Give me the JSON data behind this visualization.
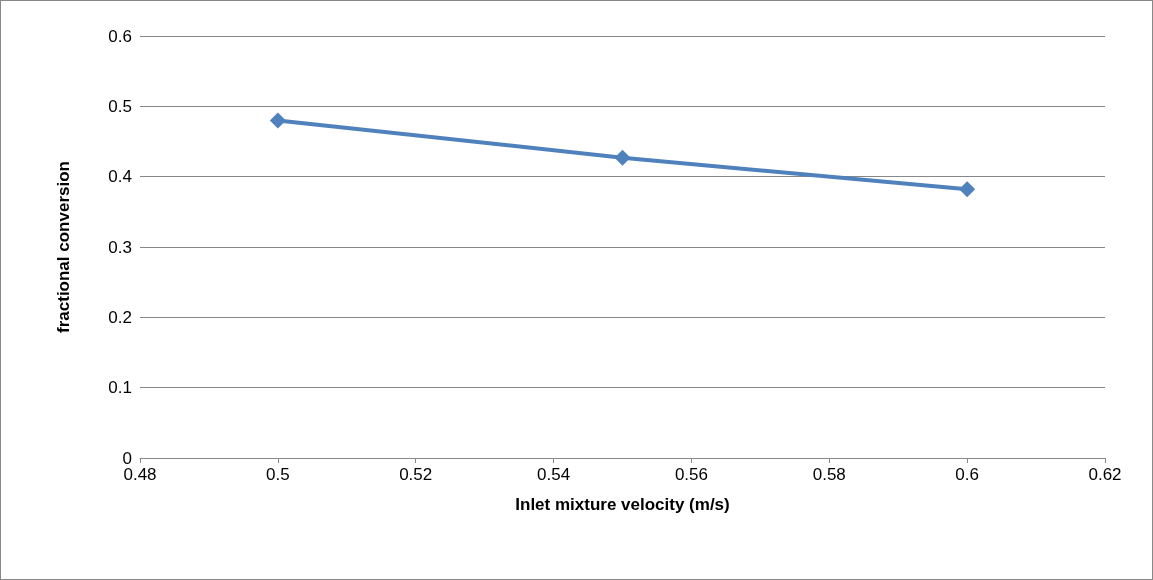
{
  "chart_data": {
    "type": "line",
    "xlabel": "Inlet mixture velocity (m/s)",
    "ylabel": "fractional conversion",
    "x": [
      0.5,
      0.55,
      0.6
    ],
    "series": [
      {
        "color": "#4f81bd",
        "values": [
          0.48,
          0.427,
          0.382
        ]
      }
    ],
    "xlim": [
      0.48,
      0.62
    ],
    "xticks": [
      0.48,
      0.5,
      0.52,
      0.54,
      0.56,
      0.58,
      0.6,
      0.62
    ],
    "ylim": [
      0,
      0.6
    ],
    "yticks": [
      0,
      0.1,
      0.2,
      0.3,
      0.4,
      0.5,
      0.6
    ],
    "grid": "y",
    "marker": "diamond",
    "line_style": "solid"
  }
}
